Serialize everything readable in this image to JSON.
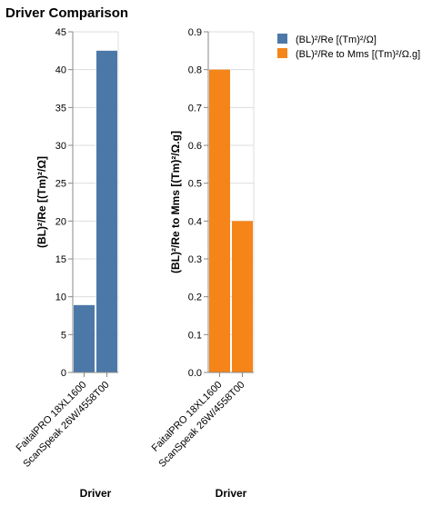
{
  "chart_data": [
    {
      "type": "bar",
      "title": "Driver Comparison",
      "xlabel": "Driver",
      "ylabel": "(BL)²/Re [(Tm)²/Ω]",
      "ylim": [
        0,
        45
      ],
      "yticks": [
        "0",
        "5",
        "10",
        "15",
        "20",
        "25",
        "30",
        "35",
        "40",
        "45"
      ],
      "categories": [
        "FaitalPRO 18XL1600",
        "ScanSpeak 26W/4558T00"
      ],
      "series": [
        {
          "name": "(BL)²/Re [(Tm)²/Ω]",
          "color": "#4c78a8",
          "values": [
            8.9,
            42.5
          ]
        }
      ],
      "grid": true
    },
    {
      "type": "bar",
      "xlabel": "Driver",
      "ylabel": "(BL)²/Re to Mms [(Tm)²/Ω.g]",
      "ylim": [
        0,
        0.9
      ],
      "yticks": [
        "0.0",
        "0.1",
        "0.2",
        "0.3",
        "0.4",
        "0.5",
        "0.6",
        "0.7",
        "0.8",
        "0.9"
      ],
      "categories": [
        "FaitalPRO 18XL1600",
        "ScanSpeak 26W/4558T00"
      ],
      "series": [
        {
          "name": "(BL)²/Re to Mms [(Tm)²/Ω.g]",
          "color": "#f58518",
          "values": [
            0.8,
            0.4
          ]
        }
      ],
      "grid": true
    }
  ],
  "legend": {
    "position": "top-right",
    "items": [
      {
        "label": "(BL)²/Re [(Tm)²/Ω]",
        "color": "#4c78a8"
      },
      {
        "label": "(BL)²/Re to Mms [(Tm)²/Ω.g]",
        "color": "#f58518"
      }
    ]
  }
}
